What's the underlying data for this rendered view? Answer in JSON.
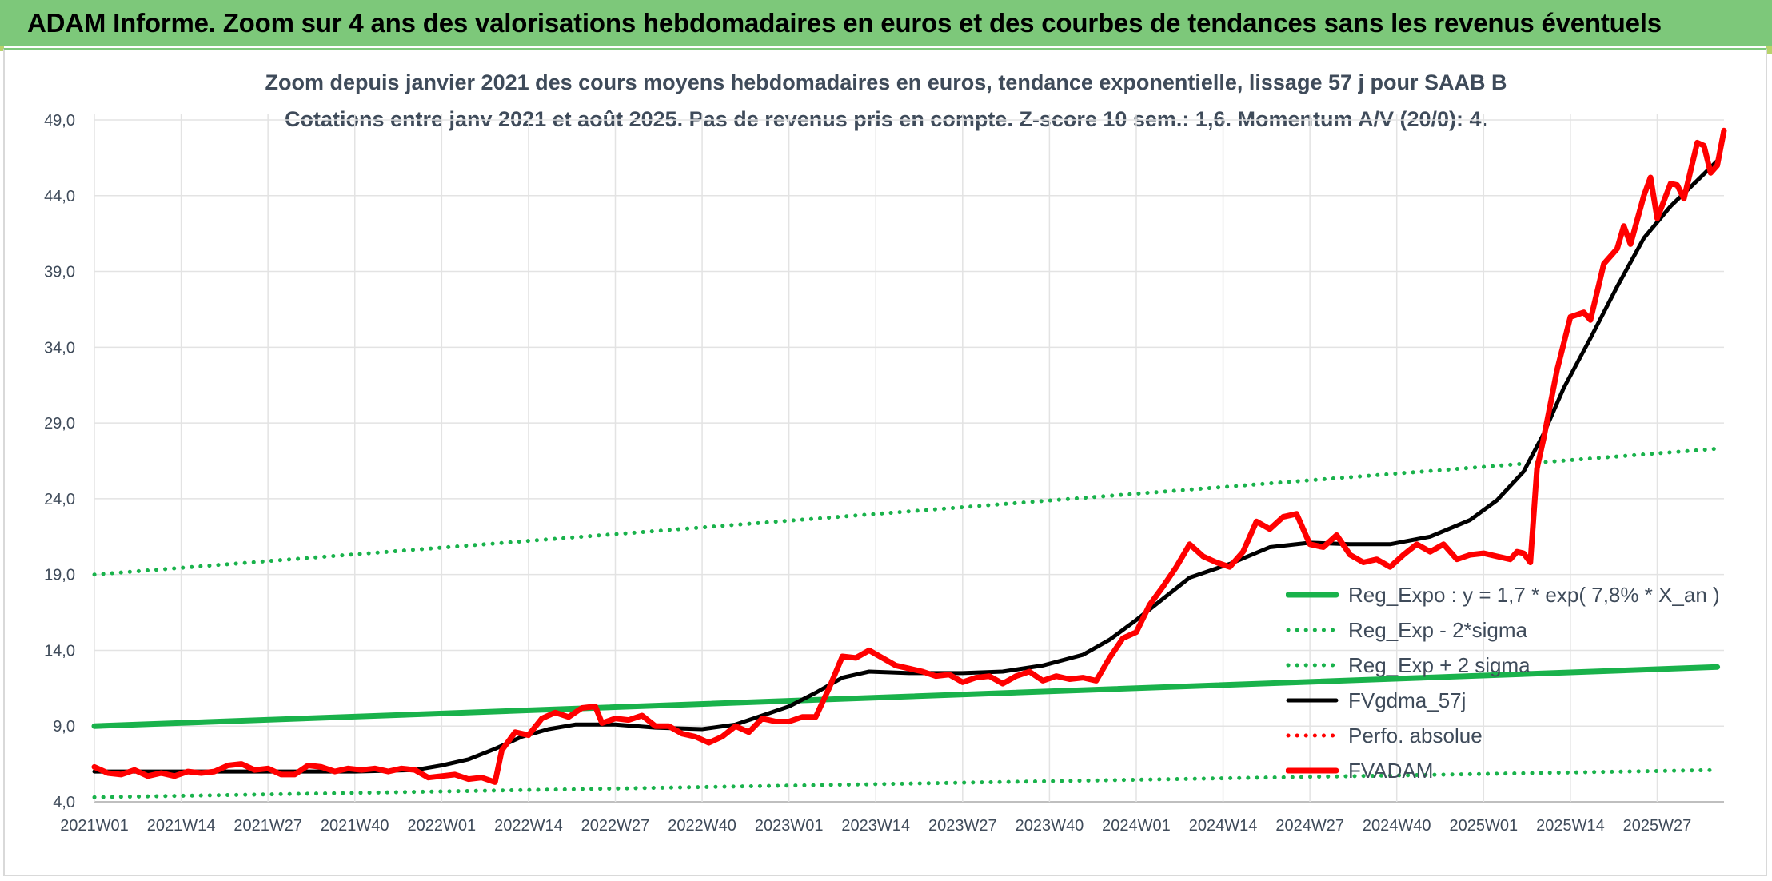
{
  "banner": {
    "text": "ADAM Informe. Zoom sur 4 ans des valorisations hebdomadaires en euros et des courbes de tendances sans les revenus éventuels"
  },
  "chart_data": {
    "type": "line",
    "title": "Zoom depuis janvier 2021 des cours moyens hebdomadaires en euros, tendance exponentielle, lissage 57 j pour SAAB B",
    "subtitle": "Cotations entre janv 2021 et août 2025. Pas de revenus pris en compte. Z-score 10 sem.: 1,6. Momentum A/V (20/0): 4.",
    "xlabel": "",
    "ylabel": "",
    "ylim": [
      4.0,
      49.0
    ],
    "yticks": [
      "4,0",
      "9,0",
      "14,0",
      "19,0",
      "24,0",
      "29,0",
      "34,0",
      "39,0",
      "44,0",
      "49,0"
    ],
    "xticks": [
      "2021W01",
      "2021W14",
      "2021W27",
      "2021W40",
      "2022W01",
      "2022W14",
      "2022W27",
      "2022W40",
      "2023W01",
      "2023W14",
      "2023W27",
      "2023W40",
      "2024W01",
      "2024W14",
      "2024W27",
      "2024W40",
      "2025W01",
      "2025W14",
      "2025W27"
    ],
    "x_unit": "week index since 2021W01 (tick every 13 weeks)",
    "grid": true,
    "legend_position": "bottom-right",
    "series": [
      {
        "name": "Reg_Expo : y = 1,7 * exp( 7,8% *  X_an )",
        "color": "#19b24b",
        "style": "solid-thick",
        "points": [
          [
            0,
            9.0
          ],
          [
            243,
            12.9
          ]
        ]
      },
      {
        "name": "Reg_Exp - 2*sigma",
        "color": "#19b24b",
        "style": "dotted",
        "points": [
          [
            0,
            4.3
          ],
          [
            243,
            6.1
          ]
        ]
      },
      {
        "name": "Reg_Exp + 2 sigma",
        "color": "#19b24b",
        "style": "dotted",
        "points": [
          [
            0,
            19.0
          ],
          [
            243,
            27.3
          ]
        ]
      },
      {
        "name": "FVgdma_57j",
        "color": "#000000",
        "style": "solid",
        "points": [
          [
            0,
            6.0
          ],
          [
            13,
            6.0
          ],
          [
            26,
            6.0
          ],
          [
            39,
            6.0
          ],
          [
            48,
            6.1
          ],
          [
            52,
            6.4
          ],
          [
            56,
            6.8
          ],
          [
            60,
            7.5
          ],
          [
            64,
            8.3
          ],
          [
            68,
            8.8
          ],
          [
            72,
            9.1
          ],
          [
            78,
            9.1
          ],
          [
            84,
            8.9
          ],
          [
            91,
            8.8
          ],
          [
            96,
            9.1
          ],
          [
            100,
            9.7
          ],
          [
            104,
            10.3
          ],
          [
            108,
            11.2
          ],
          [
            112,
            12.2
          ],
          [
            116,
            12.6
          ],
          [
            122,
            12.5
          ],
          [
            130,
            12.5
          ],
          [
            136,
            12.6
          ],
          [
            142,
            13.0
          ],
          [
            148,
            13.7
          ],
          [
            152,
            14.7
          ],
          [
            156,
            16.0
          ],
          [
            160,
            17.4
          ],
          [
            164,
            18.8
          ],
          [
            170,
            19.7
          ],
          [
            176,
            20.8
          ],
          [
            182,
            21.1
          ],
          [
            188,
            21.0
          ],
          [
            194,
            21.0
          ],
          [
            200,
            21.5
          ],
          [
            206,
            22.6
          ],
          [
            210,
            23.9
          ],
          [
            214,
            25.8
          ],
          [
            217,
            28.3
          ],
          [
            220,
            31.3
          ],
          [
            224,
            34.6
          ],
          [
            228,
            38.0
          ],
          [
            232,
            41.2
          ],
          [
            236,
            43.3
          ],
          [
            240,
            45.0
          ],
          [
            243,
            46.3
          ]
        ]
      },
      {
        "name": "Perfo. absolue",
        "color": "#ff0000",
        "style": "dotted",
        "points": []
      },
      {
        "name": "FVADAM",
        "color": "#ff0000",
        "style": "solid-thick",
        "points": [
          [
            0,
            6.3
          ],
          [
            2,
            5.9
          ],
          [
            4,
            5.8
          ],
          [
            6,
            6.1
          ],
          [
            8,
            5.7
          ],
          [
            10,
            5.9
          ],
          [
            12,
            5.7
          ],
          [
            14,
            6.0
          ],
          [
            16,
            5.9
          ],
          [
            18,
            6.0
          ],
          [
            20,
            6.4
          ],
          [
            22,
            6.5
          ],
          [
            24,
            6.1
          ],
          [
            26,
            6.2
          ],
          [
            28,
            5.8
          ],
          [
            30,
            5.8
          ],
          [
            32,
            6.4
          ],
          [
            34,
            6.3
          ],
          [
            36,
            6.0
          ],
          [
            38,
            6.2
          ],
          [
            40,
            6.1
          ],
          [
            42,
            6.2
          ],
          [
            44,
            6.0
          ],
          [
            46,
            6.2
          ],
          [
            48,
            6.1
          ],
          [
            50,
            5.6
          ],
          [
            52,
            5.7
          ],
          [
            54,
            5.8
          ],
          [
            56,
            5.5
          ],
          [
            58,
            5.6
          ],
          [
            60,
            5.3
          ],
          [
            61,
            7.4
          ],
          [
            63,
            8.6
          ],
          [
            65,
            8.4
          ],
          [
            67,
            9.5
          ],
          [
            69,
            9.9
          ],
          [
            71,
            9.6
          ],
          [
            73,
            10.2
          ],
          [
            75,
            10.3
          ],
          [
            76,
            9.2
          ],
          [
            78,
            9.5
          ],
          [
            80,
            9.4
          ],
          [
            82,
            9.7
          ],
          [
            84,
            9.0
          ],
          [
            86,
            9.0
          ],
          [
            88,
            8.5
          ],
          [
            90,
            8.3
          ],
          [
            92,
            7.9
          ],
          [
            94,
            8.3
          ],
          [
            96,
            9.0
          ],
          [
            98,
            8.6
          ],
          [
            100,
            9.5
          ],
          [
            102,
            9.3
          ],
          [
            104,
            9.3
          ],
          [
            106,
            9.6
          ],
          [
            108,
            9.6
          ],
          [
            110,
            11.5
          ],
          [
            112,
            13.6
          ],
          [
            114,
            13.5
          ],
          [
            116,
            14.0
          ],
          [
            118,
            13.5
          ],
          [
            120,
            13.0
          ],
          [
            122,
            12.8
          ],
          [
            124,
            12.6
          ],
          [
            126,
            12.3
          ],
          [
            128,
            12.4
          ],
          [
            130,
            11.9
          ],
          [
            132,
            12.2
          ],
          [
            134,
            12.3
          ],
          [
            136,
            11.8
          ],
          [
            138,
            12.3
          ],
          [
            140,
            12.6
          ],
          [
            142,
            12.0
          ],
          [
            144,
            12.3
          ],
          [
            146,
            12.1
          ],
          [
            148,
            12.2
          ],
          [
            150,
            12.0
          ],
          [
            152,
            13.5
          ],
          [
            154,
            14.8
          ],
          [
            156,
            15.2
          ],
          [
            158,
            17.0
          ],
          [
            160,
            18.2
          ],
          [
            162,
            19.5
          ],
          [
            164,
            21.0
          ],
          [
            166,
            20.2
          ],
          [
            168,
            19.8
          ],
          [
            170,
            19.5
          ],
          [
            172,
            20.5
          ],
          [
            174,
            22.5
          ],
          [
            176,
            22.0
          ],
          [
            178,
            22.8
          ],
          [
            180,
            23.0
          ],
          [
            182,
            21.0
          ],
          [
            184,
            20.8
          ],
          [
            186,
            21.6
          ],
          [
            188,
            20.3
          ],
          [
            190,
            19.8
          ],
          [
            192,
            20.0
          ],
          [
            194,
            19.5
          ],
          [
            196,
            20.3
          ],
          [
            198,
            21.0
          ],
          [
            200,
            20.5
          ],
          [
            202,
            21.0
          ],
          [
            204,
            20.0
          ],
          [
            206,
            20.3
          ],
          [
            208,
            20.4
          ],
          [
            210,
            20.2
          ],
          [
            212,
            20.0
          ],
          [
            213,
            20.5
          ],
          [
            214,
            20.4
          ],
          [
            215,
            19.8
          ],
          [
            216,
            26.0
          ],
          [
            217,
            28.0
          ],
          [
            219,
            32.5
          ],
          [
            221,
            36.0
          ],
          [
            223,
            36.3
          ],
          [
            224,
            35.8
          ],
          [
            226,
            39.5
          ],
          [
            228,
            40.5
          ],
          [
            229,
            42.0
          ],
          [
            230,
            40.8
          ],
          [
            232,
            44.0
          ],
          [
            233,
            45.2
          ],
          [
            234,
            42.5
          ],
          [
            236,
            44.8
          ],
          [
            237,
            44.7
          ],
          [
            238,
            43.8
          ],
          [
            240,
            47.5
          ],
          [
            241,
            47.3
          ],
          [
            242,
            45.5
          ],
          [
            243,
            46.0
          ],
          [
            244,
            48.3
          ]
        ]
      }
    ]
  }
}
